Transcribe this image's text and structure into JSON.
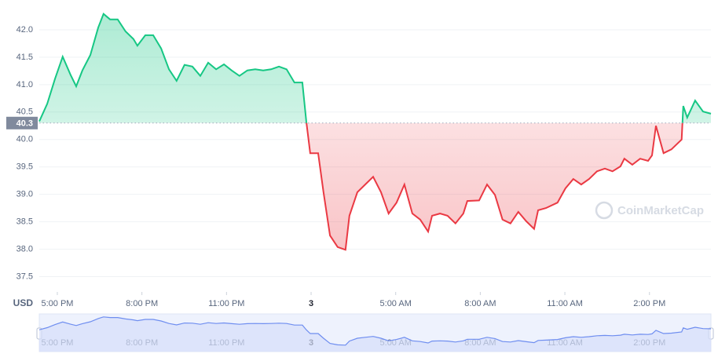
{
  "chart_data": {
    "type": "line",
    "currency": "USD",
    "watermark": "CoinMarketCap",
    "baseline": 40.3,
    "colors": {
      "up": "#16c784",
      "down": "#ea3943",
      "navigator": "#6f8ef0"
    },
    "grid": true,
    "xlim": [
      -0.64,
      23.18
    ],
    "ylim": [
      37.25,
      42.5
    ],
    "xticks": [
      {
        "value": 0,
        "label": "5:00 PM"
      },
      {
        "value": 3,
        "label": "8:00 PM"
      },
      {
        "value": 6,
        "label": "11:00 PM"
      },
      {
        "value": 9,
        "label": "3"
      },
      {
        "value": 12,
        "label": "5:00 AM"
      },
      {
        "value": 15,
        "label": "8:00 AM"
      },
      {
        "value": 18,
        "label": "11:00 AM"
      },
      {
        "value": 21,
        "label": "2:00 PM"
      }
    ],
    "yticks": [
      37.5,
      {
        "value": 38,
        "label": "38.0"
      },
      38.5,
      {
        "value": 39,
        "label": "39.0"
      },
      39.5,
      {
        "value": 40,
        "label": "40.0"
      },
      40.5,
      {
        "value": 41,
        "label": "41.0"
      },
      41.5,
      {
        "value": 42,
        "label": "42.0"
      }
    ],
    "x": [
      -0.64,
      -0.36,
      -0.08,
      0.19,
      0.47,
      0.67,
      0.89,
      1.17,
      1.45,
      1.64,
      1.87,
      2.14,
      2.42,
      2.7,
      2.84,
      3.12,
      3.4,
      3.68,
      3.96,
      4.23,
      4.51,
      4.79,
      5.07,
      5.35,
      5.63,
      5.91,
      6.18,
      6.46,
      6.74,
      7.02,
      7.3,
      7.58,
      7.86,
      8.13,
      8.41,
      8.69,
      8.83,
      8.97,
      9.25,
      9.44,
      9.67,
      9.94,
      10.22,
      10.36,
      10.64,
      10.92,
      11.2,
      11.48,
      11.75,
      12.03,
      12.31,
      12.59,
      12.87,
      13.15,
      13.29,
      13.57,
      13.84,
      14.12,
      14.4,
      14.54,
      14.96,
      15.24,
      15.52,
      15.79,
      16.07,
      16.35,
      16.63,
      16.91,
      17.05,
      17.33,
      17.74,
      18.02,
      18.3,
      18.58,
      18.86,
      19.14,
      19.42,
      19.69,
      19.97,
      20.11,
      20.39,
      20.67,
      20.95,
      21.09,
      21.23,
      21.5,
      21.78,
      22.14,
      22.2,
      22.34,
      22.62,
      22.9,
      23.18
    ],
    "series": [
      {
        "values": [
          40.33,
          40.65,
          41.11,
          41.51,
          41.18,
          40.97,
          41.26,
          41.54,
          42.04,
          42.29,
          42.19,
          42.19,
          41.97,
          41.83,
          41.71,
          41.9,
          41.9,
          41.66,
          41.28,
          41.07,
          41.36,
          41.33,
          41.16,
          41.4,
          41.28,
          41.37,
          41.26,
          41.16,
          41.26,
          41.28,
          41.26,
          41.28,
          41.33,
          41.28,
          41.04,
          41.04,
          40.33,
          39.75,
          39.75,
          39.04,
          38.25,
          38.04,
          37.99,
          38.61,
          39.04,
          39.18,
          39.32,
          39.04,
          38.65,
          38.85,
          39.18,
          38.65,
          38.54,
          38.32,
          38.61,
          38.65,
          38.61,
          38.47,
          38.65,
          38.88,
          38.89,
          39.18,
          38.99,
          38.54,
          38.47,
          38.68,
          38.51,
          38.37,
          38.71,
          38.75,
          38.85,
          39.11,
          39.28,
          39.18,
          39.28,
          39.42,
          39.47,
          39.42,
          39.51,
          39.65,
          39.54,
          39.65,
          39.61,
          39.71,
          40.25,
          39.75,
          39.82,
          40.0,
          40.61,
          40.4,
          40.71,
          40.51,
          40.47
        ]
      }
    ]
  }
}
